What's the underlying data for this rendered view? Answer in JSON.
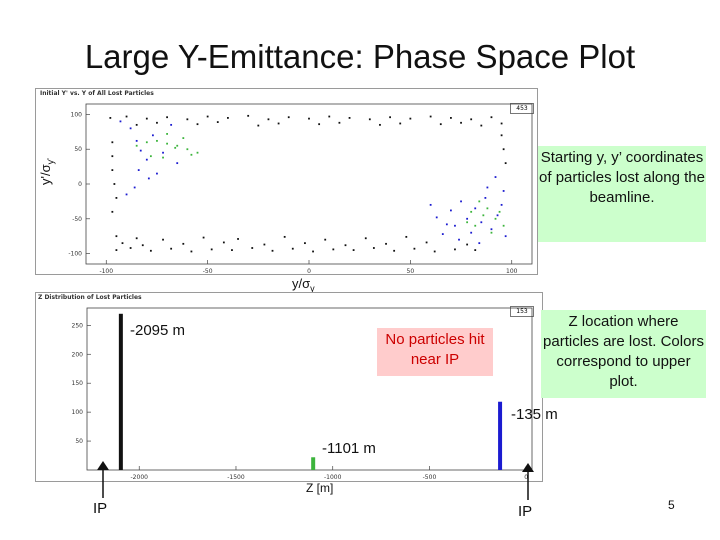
{
  "title": "Large Y-Emittance: Phase Space Plot",
  "upper_panel": {
    "header": "Initial Y' vs. Y of All Lost Particles",
    "id_box": "453",
    "ylabel_text": "y'/σ",
    "ylabel_sub": "y'",
    "xlabel_text": "y/σ",
    "xlabel_sub": "y"
  },
  "lower_panel": {
    "header": "Z Distribution of Lost Particles",
    "id_box": "153",
    "xlabel": "Z [m]"
  },
  "callouts": {
    "upper": "Starting y, y’ coordinates of particles lost along the beamline.",
    "lower": "Z location where particles are lost. Colors correspond to upper plot.",
    "middle": "No particles hit near IP"
  },
  "annotations": {
    "left_bar": "-2095 m",
    "middle_bar": "-1101 m",
    "right_bar": "-135 m"
  },
  "ip_labels": [
    "IP",
    "IP"
  ],
  "page_number": "5",
  "colors": {
    "black": "#111111",
    "blue": "#1b1bd0",
    "green": "#3cb43c"
  },
  "chart_data": [
    {
      "type": "scatter",
      "title": "Initial Y' vs. Y of All Lost Particles",
      "xlabel": "y/σy",
      "ylabel": "y'/σy'",
      "xlim": [
        -110,
        110
      ],
      "ylim": [
        -115,
        115
      ],
      "xticks": [
        -100,
        -50,
        0,
        50,
        100
      ],
      "yticks": [
        100,
        50,
        0,
        -50,
        -100
      ],
      "series": [
        {
          "name": "black",
          "color": "#111111",
          "points": [
            [
              -98,
              95
            ],
            [
              -90,
              97
            ],
            [
              -80,
              94
            ],
            [
              -70,
              96
            ],
            [
              -60,
              93
            ],
            [
              -50,
              97
            ],
            [
              -40,
              95
            ],
            [
              -30,
              98
            ],
            [
              -20,
              93
            ],
            [
              -10,
              96
            ],
            [
              0,
              94
            ],
            [
              10,
              97
            ],
            [
              20,
              95
            ],
            [
              30,
              93
            ],
            [
              40,
              96
            ],
            [
              50,
              94
            ],
            [
              60,
              97
            ],
            [
              70,
              95
            ],
            [
              80,
              93
            ],
            [
              90,
              96
            ],
            [
              -85,
              85
            ],
            [
              -75,
              88
            ],
            [
              -55,
              86
            ],
            [
              -45,
              89
            ],
            [
              -25,
              84
            ],
            [
              -15,
              87
            ],
            [
              5,
              86
            ],
            [
              15,
              88
            ],
            [
              35,
              85
            ],
            [
              45,
              87
            ],
            [
              65,
              86
            ],
            [
              75,
              88
            ],
            [
              85,
              84
            ],
            [
              95,
              87
            ],
            [
              -95,
              -95
            ],
            [
              -88,
              -92
            ],
            [
              -78,
              -96
            ],
            [
              -68,
              -93
            ],
            [
              -58,
              -97
            ],
            [
              -48,
              -94
            ],
            [
              -38,
              -95
            ],
            [
              -28,
              -92
            ],
            [
              -18,
              -96
            ],
            [
              -8,
              -93
            ],
            [
              2,
              -97
            ],
            [
              12,
              -94
            ],
            [
              22,
              -95
            ],
            [
              32,
              -92
            ],
            [
              42,
              -96
            ],
            [
              52,
              -93
            ],
            [
              62,
              -97
            ],
            [
              72,
              -94
            ],
            [
              82,
              -95
            ],
            [
              -92,
              -85
            ],
            [
              -82,
              -88
            ],
            [
              -62,
              -86
            ],
            [
              -42,
              -84
            ],
            [
              -22,
              -87
            ],
            [
              -2,
              -85
            ],
            [
              18,
              -88
            ],
            [
              38,
              -86
            ],
            [
              58,
              -84
            ],
            [
              78,
              -87
            ],
            [
              -95,
              -75
            ],
            [
              -85,
              -78
            ],
            [
              -72,
              -80
            ],
            [
              -52,
              -77
            ],
            [
              -35,
              -79
            ],
            [
              -12,
              -76
            ],
            [
              8,
              -80
            ],
            [
              28,
              -78
            ],
            [
              48,
              -76
            ],
            [
              -97,
              60
            ],
            [
              -97,
              40
            ],
            [
              -97,
              20
            ],
            [
              -96,
              0
            ],
            [
              -95,
              -20
            ],
            [
              -97,
              -40
            ],
            [
              95,
              70
            ],
            [
              96,
              50
            ],
            [
              97,
              30
            ]
          ]
        },
        {
          "name": "blue",
          "color": "#1b1bd0",
          "points": [
            [
              -93,
              90
            ],
            [
              -88,
              80
            ],
            [
              -85,
              62
            ],
            [
              -83,
              48
            ],
            [
              -80,
              35
            ],
            [
              -84,
              20
            ],
            [
              -79,
              8
            ],
            [
              -86,
              -5
            ],
            [
              -90,
              -15
            ],
            [
              -72,
              45
            ],
            [
              -65,
              30
            ],
            [
              -75,
              15
            ],
            [
              -68,
              85
            ],
            [
              -77,
              70
            ],
            [
              60,
              -30
            ],
            [
              63,
              -48
            ],
            [
              66,
              -72
            ],
            [
              70,
              -38
            ],
            [
              72,
              -60
            ],
            [
              75,
              -25
            ],
            [
              78,
              -50
            ],
            [
              80,
              -70
            ],
            [
              82,
              -35
            ],
            [
              85,
              -55
            ],
            [
              87,
              -20
            ],
            [
              88,
              -5
            ],
            [
              90,
              -65
            ],
            [
              92,
              10
            ],
            [
              93,
              -45
            ],
            [
              95,
              -30
            ],
            [
              96,
              -10
            ],
            [
              97,
              -75
            ],
            [
              84,
              -85
            ],
            [
              74,
              -80
            ],
            [
              68,
              -58
            ]
          ]
        },
        {
          "name": "green",
          "color": "#3cb43c",
          "points": [
            [
              -80,
              60
            ],
            [
              -75,
              62
            ],
            [
              -70,
              58
            ],
            [
              -65,
              55
            ],
            [
              -60,
              50
            ],
            [
              -55,
              45
            ],
            [
              -78,
              40
            ],
            [
              -72,
              38
            ],
            [
              -66,
              52
            ],
            [
              -58,
              42
            ],
            [
              -85,
              55
            ],
            [
              -62,
              66
            ],
            [
              -70,
              72
            ],
            [
              78,
              -55
            ],
            [
              82,
              -60
            ],
            [
              86,
              -45
            ],
            [
              88,
              -35
            ],
            [
              90,
              -70
            ],
            [
              92,
              -50
            ],
            [
              94,
              -40
            ],
            [
              96,
              -60
            ],
            [
              84,
              -25
            ],
            [
              80,
              -40
            ]
          ]
        }
      ]
    },
    {
      "type": "bar",
      "title": "Z Distribution of Lost Particles",
      "xlabel": "Z [m]",
      "xlim": [
        -2270,
        30
      ],
      "ylim": [
        0,
        280
      ],
      "xticks": [
        -2000,
        -1500,
        -1000,
        -500,
        0
      ],
      "yticks": [
        250,
        200,
        150,
        100,
        50
      ],
      "series": [
        {
          "name": "black",
          "color": "#111111",
          "bars": [
            {
              "z": -2095,
              "count": 270
            }
          ]
        },
        {
          "name": "green",
          "color": "#3cb43c",
          "bars": [
            {
              "z": -1101,
              "count": 22
            }
          ]
        },
        {
          "name": "blue",
          "color": "#1b1bd0",
          "bars": [
            {
              "z": -135,
              "count": 118
            }
          ]
        }
      ]
    }
  ]
}
